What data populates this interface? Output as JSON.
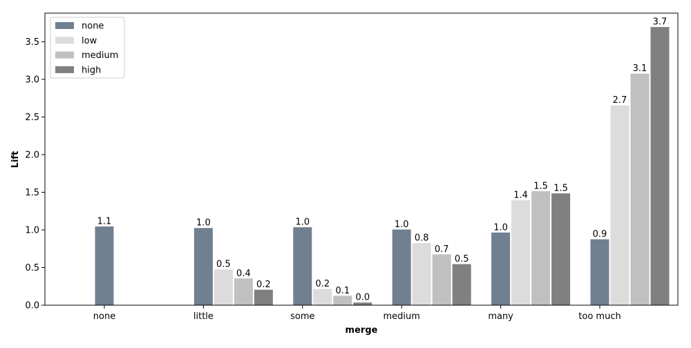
{
  "chart_data": {
    "type": "bar",
    "xlabel": "merge",
    "ylabel": "Lift",
    "categories": [
      "none",
      "little",
      "some",
      "medium",
      "many",
      "too much"
    ],
    "ylim": [
      0,
      3.88
    ],
    "yticks": [
      "0.0",
      "0.5",
      "1.0",
      "1.5",
      "2.0",
      "2.5",
      "3.0",
      "3.5"
    ],
    "legend_position": "top-left",
    "grid": false,
    "series": [
      {
        "name": "none",
        "color": "#708090",
        "values": [
          1.05,
          1.03,
          1.04,
          1.01,
          0.97,
          0.88
        ],
        "labels": [
          "1.1",
          "1.0",
          "1.0",
          "1.0",
          "1.0",
          "0.9"
        ]
      },
      {
        "name": "low",
        "color": "#dcdcdc",
        "values": [
          null,
          0.48,
          0.22,
          0.83,
          1.4,
          2.66
        ],
        "labels": [
          "",
          "0.5",
          "0.2",
          "0.8",
          "1.4",
          "2.7"
        ]
      },
      {
        "name": "medium",
        "color": "#c0c0c0",
        "values": [
          null,
          0.36,
          0.13,
          0.68,
          1.52,
          3.08
        ],
        "labels": [
          "",
          "0.4",
          "0.1",
          "0.7",
          "1.5",
          "3.1"
        ]
      },
      {
        "name": "high",
        "color": "#808080",
        "values": [
          null,
          0.21,
          0.04,
          0.55,
          1.49,
          3.7
        ],
        "labels": [
          "",
          "0.2",
          "0.0",
          "0.5",
          "1.5",
          "3.7"
        ]
      }
    ]
  }
}
